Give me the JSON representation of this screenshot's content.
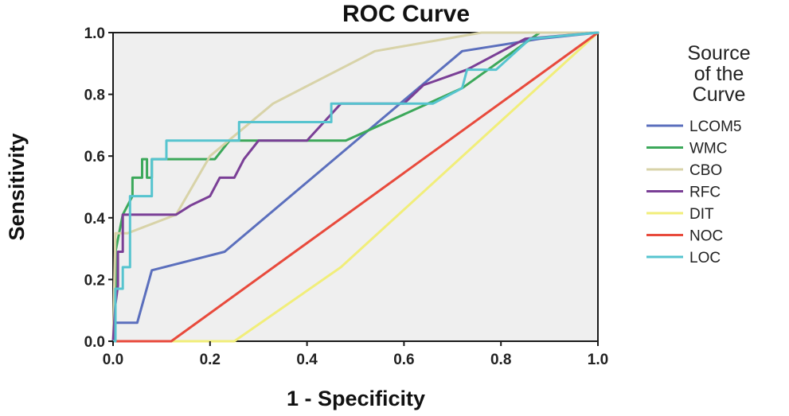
{
  "chart_data": {
    "type": "line",
    "title": "ROC Curve",
    "xlabel": "1 - Specificity",
    "ylabel": "Sensitivity",
    "xlim": [
      0,
      1
    ],
    "ylim": [
      0,
      1
    ],
    "xticks": [
      "0.0",
      "0.2",
      "0.4",
      "0.6",
      "0.8",
      "1.0"
    ],
    "yticks": [
      "0.0",
      "0.2",
      "0.4",
      "0.6",
      "0.8",
      "1.0"
    ],
    "grid": false,
    "plot_background": "#efefef",
    "legend": {
      "title": [
        "Source",
        "of the",
        "Curve"
      ],
      "position": "right"
    },
    "series": [
      {
        "name": "LCOM5",
        "color": "#5b6fbd",
        "x": [
          0,
          0.005,
          0.005,
          0.05,
          0.08,
          0.23,
          0.72,
          0.88,
          1.0
        ],
        "y": [
          0,
          0,
          0.06,
          0.06,
          0.23,
          0.29,
          0.94,
          0.98,
          1.0
        ]
      },
      {
        "name": "WMC",
        "color": "#3ca85a",
        "x": [
          0,
          0.005,
          0.005,
          0.02,
          0.04,
          0.04,
          0.06,
          0.06,
          0.07,
          0.07,
          0.08,
          0.08,
          0.11,
          0.13,
          0.17,
          0.21,
          0.24,
          0.48,
          0.72,
          0.88,
          1.0
        ],
        "y": [
          0,
          0,
          0.29,
          0.41,
          0.47,
          0.53,
          0.53,
          0.59,
          0.59,
          0.53,
          0.53,
          0.59,
          0.59,
          0.59,
          0.59,
          0.59,
          0.65,
          0.65,
          0.82,
          1.0,
          1.0
        ]
      },
      {
        "name": "CBO",
        "color": "#d8d3a8",
        "x": [
          0,
          0.005,
          0.03,
          0.13,
          0.2,
          0.33,
          0.54,
          0.76,
          1.0
        ],
        "y": [
          0,
          0.35,
          0.35,
          0.41,
          0.6,
          0.77,
          0.94,
          1.0,
          1.0
        ]
      },
      {
        "name": "RFC",
        "color": "#7a3f96",
        "x": [
          0,
          0.005,
          0.01,
          0.01,
          0.02,
          0.02,
          0.13,
          0.16,
          0.2,
          0.2,
          0.22,
          0.25,
          0.27,
          0.3,
          0.4,
          0.47,
          0.6,
          0.64,
          0.73,
          0.85,
          1.0
        ],
        "y": [
          0,
          0.12,
          0.18,
          0.29,
          0.29,
          0.41,
          0.41,
          0.44,
          0.47,
          0.47,
          0.53,
          0.53,
          0.59,
          0.65,
          0.65,
          0.77,
          0.77,
          0.83,
          0.88,
          0.98,
          1.0
        ]
      },
      {
        "name": "DIT",
        "color": "#f1ee7a",
        "x": [
          0,
          0.25,
          0.47,
          1.0
        ],
        "y": [
          0,
          0,
          0.24,
          1.0
        ]
      },
      {
        "name": "NOC",
        "color": "#e84a3c",
        "x": [
          0,
          0.12,
          1.0
        ],
        "y": [
          0,
          0,
          1.0
        ]
      },
      {
        "name": "LOC",
        "color": "#56c4cf",
        "x": [
          0,
          0.005,
          0.005,
          0.02,
          0.02,
          0.035,
          0.035,
          0.06,
          0.06,
          0.08,
          0.08,
          0.11,
          0.11,
          0.25,
          0.26,
          0.26,
          0.44,
          0.45,
          0.45,
          0.6,
          0.62,
          0.66,
          0.72,
          0.73,
          0.79,
          0.86,
          1.0
        ],
        "y": [
          0,
          0,
          0.17,
          0.17,
          0.24,
          0.24,
          0.47,
          0.47,
          0.47,
          0.47,
          0.59,
          0.59,
          0.65,
          0.65,
          0.65,
          0.71,
          0.71,
          0.71,
          0.77,
          0.77,
          0.77,
          0.77,
          0.82,
          0.88,
          0.88,
          0.98,
          1.0
        ]
      }
    ]
  }
}
